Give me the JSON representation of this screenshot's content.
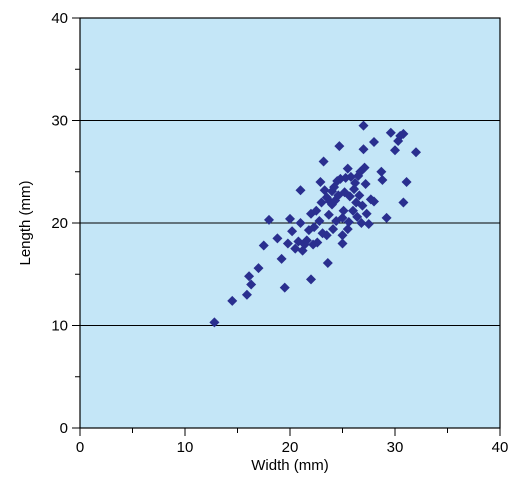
{
  "chart_data": {
    "type": "scatter",
    "xlabel": "Width (mm)",
    "ylabel": "Length (mm)",
    "xlim": [
      0,
      40
    ],
    "ylim": [
      0,
      40
    ],
    "xticks": [
      0,
      10,
      20,
      30,
      40
    ],
    "yticks": [
      0,
      10,
      20,
      30,
      40
    ],
    "grid": "horizontal at 10, 20, 30",
    "marker": "diamond",
    "colors": {
      "plot_background": "#c4e6f7",
      "marker": "#2a2f8f",
      "axis": "#000000"
    },
    "points": [
      [
        12.8,
        10.3
      ],
      [
        14.5,
        12.4
      ],
      [
        15.9,
        13.0
      ],
      [
        16.1,
        14.8
      ],
      [
        16.3,
        14.0
      ],
      [
        17.0,
        15.6
      ],
      [
        17.5,
        17.8
      ],
      [
        18.0,
        20.3
      ],
      [
        18.8,
        18.5
      ],
      [
        19.2,
        16.5
      ],
      [
        19.5,
        13.7
      ],
      [
        19.8,
        18.0
      ],
      [
        20.0,
        20.4
      ],
      [
        20.2,
        19.2
      ],
      [
        20.5,
        17.5
      ],
      [
        20.8,
        18.2
      ],
      [
        21.0,
        20.0
      ],
      [
        21.0,
        23.2
      ],
      [
        21.2,
        17.3
      ],
      [
        21.4,
        17.9
      ],
      [
        21.6,
        18.3
      ],
      [
        21.8,
        19.3
      ],
      [
        22.0,
        20.9
      ],
      [
        22.0,
        14.5
      ],
      [
        22.2,
        17.9
      ],
      [
        22.3,
        19.6
      ],
      [
        22.5,
        21.2
      ],
      [
        22.6,
        18.1
      ],
      [
        22.8,
        20.2
      ],
      [
        22.9,
        24.0
      ],
      [
        23.0,
        22.0
      ],
      [
        23.1,
        19.0
      ],
      [
        23.2,
        26.0
      ],
      [
        23.3,
        23.2
      ],
      [
        23.5,
        22.5
      ],
      [
        23.5,
        18.8
      ],
      [
        23.6,
        16.1
      ],
      [
        23.7,
        20.8
      ],
      [
        23.8,
        22.1
      ],
      [
        24.0,
        23.1
      ],
      [
        24.0,
        21.8
      ],
      [
        24.1,
        19.4
      ],
      [
        24.2,
        23.5
      ],
      [
        24.3,
        22.2
      ],
      [
        24.4,
        20.2
      ],
      [
        24.5,
        24.1
      ],
      [
        24.6,
        22.7
      ],
      [
        24.7,
        27.5
      ],
      [
        24.8,
        24.3
      ],
      [
        25.0,
        18.0
      ],
      [
        25.0,
        20.5
      ],
      [
        25.0,
        18.8
      ],
      [
        25.1,
        21.2
      ],
      [
        25.2,
        23.0
      ],
      [
        25.3,
        24.4
      ],
      [
        25.5,
        25.3
      ],
      [
        25.5,
        19.4
      ],
      [
        25.6,
        20.1
      ],
      [
        25.7,
        22.6
      ],
      [
        25.8,
        24.5
      ],
      [
        26.0,
        21.2
      ],
      [
        26.1,
        23.3
      ],
      [
        26.2,
        23.9
      ],
      [
        26.3,
        22.0
      ],
      [
        26.4,
        20.6
      ],
      [
        26.5,
        24.6
      ],
      [
        26.6,
        22.7
      ],
      [
        26.7,
        25.0
      ],
      [
        26.8,
        20.0
      ],
      [
        26.9,
        21.7
      ],
      [
        27.0,
        29.5
      ],
      [
        27.0,
        27.2
      ],
      [
        27.1,
        25.4
      ],
      [
        27.2,
        23.8
      ],
      [
        27.3,
        20.9
      ],
      [
        27.5,
        19.9
      ],
      [
        27.7,
        22.3
      ],
      [
        28.0,
        22.1
      ],
      [
        28.0,
        27.9
      ],
      [
        28.7,
        25.0
      ],
      [
        28.8,
        24.2
      ],
      [
        29.2,
        20.5
      ],
      [
        29.6,
        28.8
      ],
      [
        30.0,
        27.1
      ],
      [
        30.3,
        28.0
      ],
      [
        30.5,
        28.5
      ],
      [
        30.8,
        28.7
      ],
      [
        30.8,
        22.0
      ],
      [
        31.1,
        24.0
      ],
      [
        32.0,
        26.9
      ]
    ]
  }
}
